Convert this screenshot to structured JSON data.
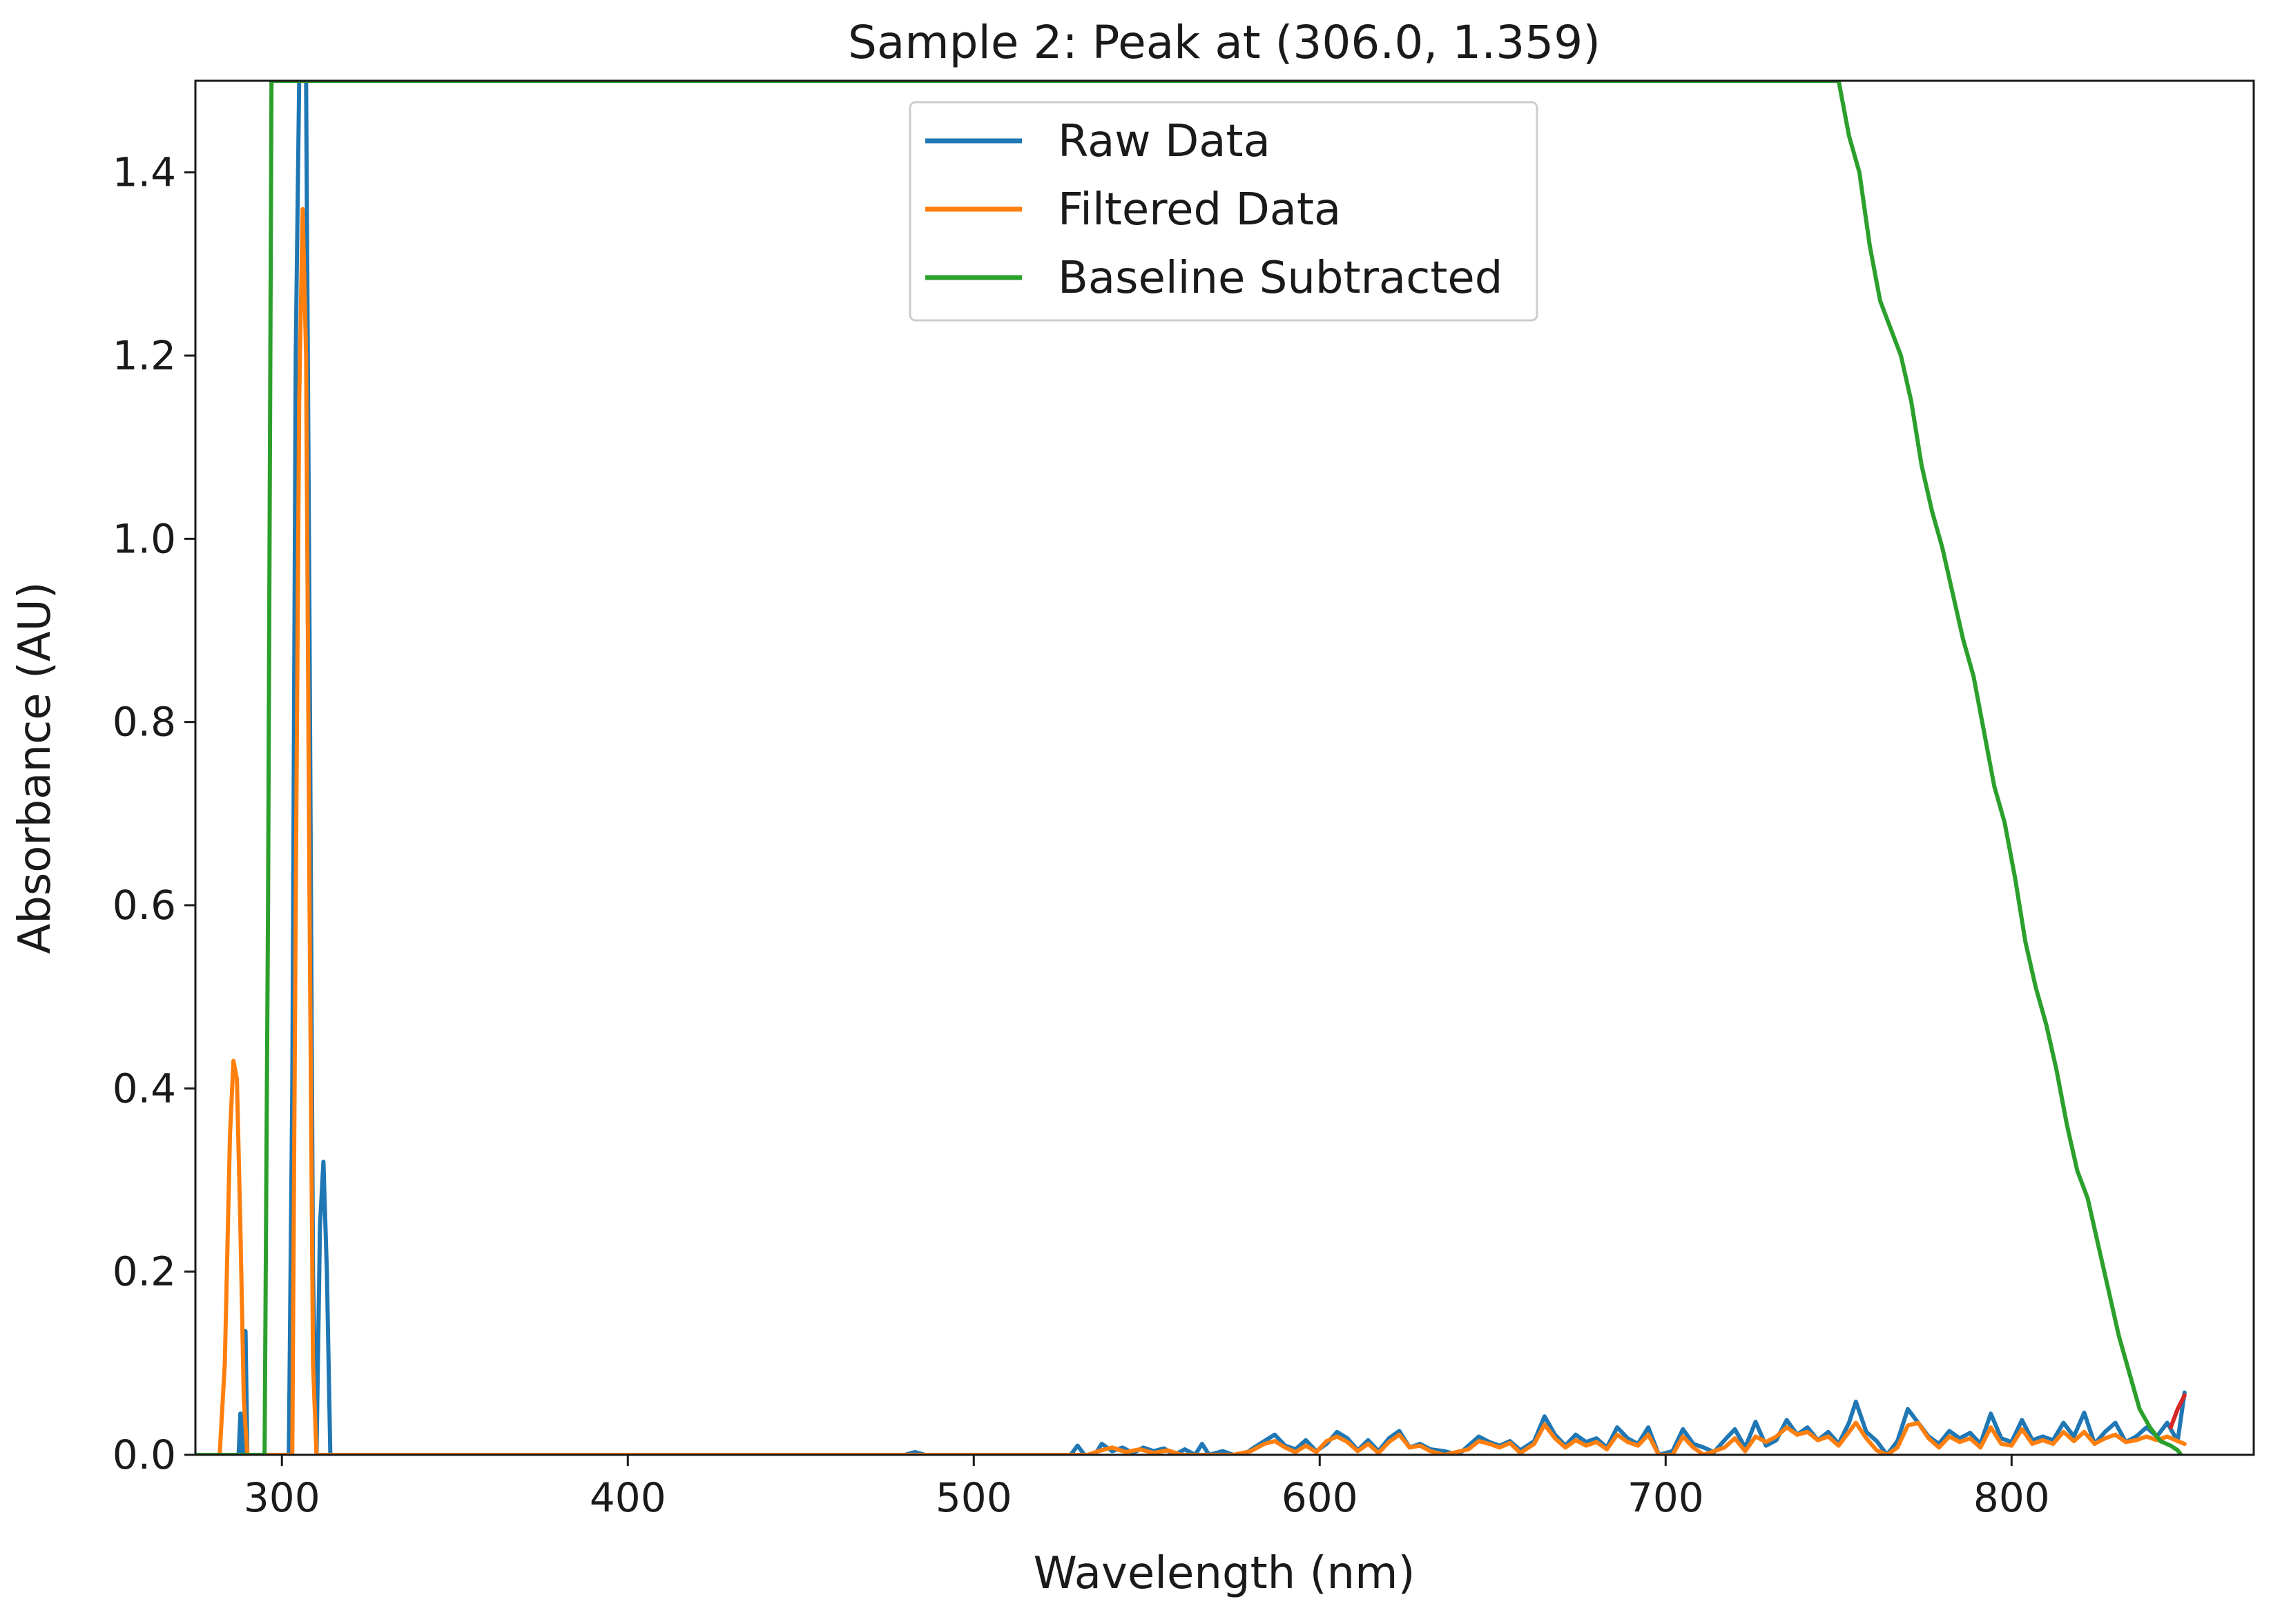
{
  "chart_data": {
    "type": "line",
    "title": "Sample 2: Peak at (306.0, 1.359)",
    "xlabel": "Wavelength (nm)",
    "ylabel": "Absorbance (AU)",
    "xlim": [
      275,
      870
    ],
    "ylim": [
      0,
      1.5
    ],
    "x_ticks": [
      300,
      400,
      500,
      600,
      700,
      800
    ],
    "y_ticks": [
      0.0,
      0.2,
      0.4,
      0.6,
      0.8,
      1.0,
      1.2,
      1.4
    ],
    "x_tick_labels": [
      "300",
      "400",
      "500",
      "600",
      "700",
      "800"
    ],
    "y_tick_labels": [
      "0.0",
      "0.2",
      "0.4",
      "0.6",
      "0.8",
      "1.0",
      "1.2",
      "1.4"
    ],
    "grid": false,
    "legend_position": "top-center",
    "series": [
      {
        "name": "Raw Data",
        "color": "#1f77b4",
        "points": [
          [
            275,
            0
          ],
          [
            287.5,
            0
          ],
          [
            288,
            0.045
          ],
          [
            288.5,
            0
          ],
          [
            289,
            0
          ],
          [
            289.5,
            0.135
          ],
          [
            290,
            0
          ],
          [
            302,
            0
          ],
          [
            303,
            0.4
          ],
          [
            304,
            1.2
          ],
          [
            305,
            1.5
          ],
          [
            306,
            1.5
          ],
          [
            307,
            1.5
          ],
          [
            308,
            0.9
          ],
          [
            309,
            0.2
          ],
          [
            310,
            0
          ],
          [
            311,
            0.25
          ],
          [
            312,
            0.32
          ],
          [
            313,
            0.2
          ],
          [
            314,
            0
          ],
          [
            480,
            0
          ],
          [
            483,
            0.003
          ],
          [
            486,
            0
          ],
          [
            528,
            0
          ],
          [
            530,
            0.01
          ],
          [
            532,
            0
          ],
          [
            535,
            0
          ],
          [
            537,
            0.012
          ],
          [
            540,
            0.004
          ],
          [
            543,
            0.008
          ],
          [
            546,
            0.002
          ],
          [
            549,
            0.008
          ],
          [
            552,
            0.004
          ],
          [
            555,
            0.007
          ],
          [
            558,
            0
          ],
          [
            561,
            0.006
          ],
          [
            564,
            0
          ],
          [
            566,
            0.012
          ],
          [
            568,
            0
          ],
          [
            572,
            0.004
          ],
          [
            575,
            0
          ],
          [
            578,
            0
          ],
          [
            581,
            0.008
          ],
          [
            584,
            0.015
          ],
          [
            587,
            0.022
          ],
          [
            590,
            0.01
          ],
          [
            593,
            0.006
          ],
          [
            596,
            0.016
          ],
          [
            599,
            0.004
          ],
          [
            602,
            0.012
          ],
          [
            605,
            0.025
          ],
          [
            608,
            0.018
          ],
          [
            611,
            0.005
          ],
          [
            614,
            0.016
          ],
          [
            617,
            0.004
          ],
          [
            620,
            0.018
          ],
          [
            623,
            0.026
          ],
          [
            626,
            0.008
          ],
          [
            629,
            0.012
          ],
          [
            632,
            0.006
          ],
          [
            636,
            0.004
          ],
          [
            640,
            0
          ],
          [
            643,
            0.01
          ],
          [
            646,
            0.02
          ],
          [
            649,
            0.014
          ],
          [
            652,
            0.01
          ],
          [
            655,
            0.015
          ],
          [
            658,
            0.005
          ],
          [
            662,
            0.015
          ],
          [
            665,
            0.042
          ],
          [
            668,
            0.022
          ],
          [
            671,
            0.01
          ],
          [
            674,
            0.022
          ],
          [
            677,
            0.014
          ],
          [
            680,
            0.018
          ],
          [
            683,
            0.008
          ],
          [
            686,
            0.03
          ],
          [
            689,
            0.018
          ],
          [
            692,
            0.012
          ],
          [
            695,
            0.03
          ],
          [
            698,
            0
          ],
          [
            702,
            0.004
          ],
          [
            705,
            0.028
          ],
          [
            708,
            0.012
          ],
          [
            711,
            0.008
          ],
          [
            714,
            0.003
          ],
          [
            717,
            0.016
          ],
          [
            720,
            0.028
          ],
          [
            723,
            0.008
          ],
          [
            726,
            0.036
          ],
          [
            729,
            0.01
          ],
          [
            732,
            0.016
          ],
          [
            735,
            0.038
          ],
          [
            738,
            0.022
          ],
          [
            741,
            0.03
          ],
          [
            744,
            0.016
          ],
          [
            747,
            0.025
          ],
          [
            750,
            0.012
          ],
          [
            753,
            0.035
          ],
          [
            755,
            0.058
          ],
          [
            758,
            0.025
          ],
          [
            761,
            0.015
          ],
          [
            764,
            0
          ],
          [
            767,
            0.015
          ],
          [
            770,
            0.05
          ],
          [
            773,
            0.035
          ],
          [
            776,
            0.02
          ],
          [
            779,
            0.012
          ],
          [
            782,
            0.026
          ],
          [
            785,
            0.018
          ],
          [
            788,
            0.024
          ],
          [
            791,
            0.012
          ],
          [
            794,
            0.045
          ],
          [
            797,
            0.018
          ],
          [
            800,
            0.014
          ],
          [
            803,
            0.038
          ],
          [
            806,
            0.016
          ],
          [
            809,
            0.02
          ],
          [
            812,
            0.016
          ],
          [
            815,
            0.035
          ],
          [
            818,
            0.02
          ],
          [
            821,
            0.046
          ],
          [
            824,
            0.012
          ],
          [
            827,
            0.025
          ],
          [
            830,
            0.035
          ],
          [
            833,
            0.014
          ],
          [
            836,
            0.02
          ],
          [
            839,
            0.03
          ],
          [
            842,
            0.02
          ],
          [
            845,
            0.035
          ],
          [
            848,
            0.015
          ],
          [
            850,
            0.068
          ]
        ]
      },
      {
        "name": "Filtered Data",
        "color": "#ff7f0e",
        "points": [
          [
            275,
            0
          ],
          [
            282,
            0
          ],
          [
            283.5,
            0.1
          ],
          [
            285,
            0.35
          ],
          [
            286,
            0.43
          ],
          [
            287,
            0.41
          ],
          [
            288,
            0.25
          ],
          [
            289,
            0.06
          ],
          [
            290,
            0
          ],
          [
            303,
            0
          ],
          [
            304,
            0.6
          ],
          [
            305,
            1.15
          ],
          [
            306,
            1.36
          ],
          [
            307,
            1.2
          ],
          [
            308,
            0.6
          ],
          [
            309,
            0.1
          ],
          [
            310,
            0
          ],
          [
            533,
            0
          ],
          [
            536,
            0.004
          ],
          [
            540,
            0.008
          ],
          [
            544,
            0.003
          ],
          [
            548,
            0.006
          ],
          [
            552,
            0.002
          ],
          [
            556,
            0.005
          ],
          [
            560,
            0
          ],
          [
            575,
            0
          ],
          [
            580,
            0.004
          ],
          [
            584,
            0.012
          ],
          [
            587,
            0.015
          ],
          [
            590,
            0.008
          ],
          [
            593,
            0.003
          ],
          [
            596,
            0.01
          ],
          [
            599,
            0.003
          ],
          [
            602,
            0.015
          ],
          [
            605,
            0.02
          ],
          [
            608,
            0.014
          ],
          [
            611,
            0.004
          ],
          [
            614,
            0.012
          ],
          [
            617,
            0.002
          ],
          [
            620,
            0.014
          ],
          [
            623,
            0.022
          ],
          [
            626,
            0.008
          ],
          [
            629,
            0.01
          ],
          [
            632,
            0.004
          ],
          [
            636,
            0
          ],
          [
            643,
            0.006
          ],
          [
            646,
            0.015
          ],
          [
            649,
            0.012
          ],
          [
            652,
            0.008
          ],
          [
            655,
            0.013
          ],
          [
            658,
            0.002
          ],
          [
            662,
            0.012
          ],
          [
            665,
            0.033
          ],
          [
            668,
            0.018
          ],
          [
            671,
            0.008
          ],
          [
            674,
            0.016
          ],
          [
            677,
            0.01
          ],
          [
            680,
            0.014
          ],
          [
            683,
            0.006
          ],
          [
            686,
            0.022
          ],
          [
            689,
            0.014
          ],
          [
            692,
            0.01
          ],
          [
            695,
            0.022
          ],
          [
            698,
            0
          ],
          [
            702,
            0
          ],
          [
            705,
            0.02
          ],
          [
            708,
            0.008
          ],
          [
            711,
            0
          ],
          [
            717,
            0.008
          ],
          [
            720,
            0.018
          ],
          [
            723,
            0.004
          ],
          [
            726,
            0.02
          ],
          [
            729,
            0.014
          ],
          [
            732,
            0.02
          ],
          [
            735,
            0.03
          ],
          [
            738,
            0.022
          ],
          [
            741,
            0.025
          ],
          [
            744,
            0.016
          ],
          [
            747,
            0.02
          ],
          [
            750,
            0.01
          ],
          [
            753,
            0.025
          ],
          [
            755,
            0.035
          ],
          [
            758,
            0.018
          ],
          [
            761,
            0.005
          ],
          [
            764,
            0
          ],
          [
            767,
            0.008
          ],
          [
            770,
            0.032
          ],
          [
            773,
            0.035
          ],
          [
            776,
            0.018
          ],
          [
            779,
            0.008
          ],
          [
            782,
            0.02
          ],
          [
            785,
            0.014
          ],
          [
            788,
            0.018
          ],
          [
            791,
            0.008
          ],
          [
            794,
            0.03
          ],
          [
            797,
            0.012
          ],
          [
            800,
            0.01
          ],
          [
            803,
            0.028
          ],
          [
            806,
            0.012
          ],
          [
            809,
            0.016
          ],
          [
            812,
            0.012
          ],
          [
            815,
            0.025
          ],
          [
            818,
            0.015
          ],
          [
            821,
            0.025
          ],
          [
            824,
            0.012
          ],
          [
            827,
            0.018
          ],
          [
            830,
            0.022
          ],
          [
            833,
            0.014
          ],
          [
            836,
            0.016
          ],
          [
            839,
            0.02
          ],
          [
            842,
            0.016
          ],
          [
            845,
            0.02
          ],
          [
            848,
            0.015
          ],
          [
            850,
            0.012
          ]
        ]
      },
      {
        "name": "Baseline Subtracted",
        "color": "#2ca02c",
        "points": [
          [
            275,
            0
          ],
          [
            295,
            0
          ],
          [
            296,
            0.6
          ],
          [
            297,
            1.5
          ],
          [
            750,
            1.5
          ],
          [
            753,
            1.44
          ],
          [
            756,
            1.4
          ],
          [
            759,
            1.32
          ],
          [
            762,
            1.26
          ],
          [
            765,
            1.23
          ],
          [
            768,
            1.2
          ],
          [
            771,
            1.15
          ],
          [
            774,
            1.08
          ],
          [
            777,
            1.03
          ],
          [
            780,
            0.99
          ],
          [
            783,
            0.94
          ],
          [
            786,
            0.89
          ],
          [
            789,
            0.85
          ],
          [
            792,
            0.79
          ],
          [
            795,
            0.73
          ],
          [
            798,
            0.69
          ],
          [
            801,
            0.63
          ],
          [
            804,
            0.56
          ],
          [
            807,
            0.51
          ],
          [
            810,
            0.47
          ],
          [
            813,
            0.42
          ],
          [
            816,
            0.36
          ],
          [
            819,
            0.31
          ],
          [
            822,
            0.28
          ],
          [
            825,
            0.23
          ],
          [
            828,
            0.18
          ],
          [
            831,
            0.13
          ],
          [
            834,
            0.09
          ],
          [
            837,
            0.05
          ],
          [
            840,
            0.03
          ],
          [
            843,
            0.015
          ],
          [
            846,
            0.01
          ],
          [
            848,
            0.005
          ],
          [
            849,
            0
          ]
        ]
      },
      {
        "name": "",
        "color": "#d62728",
        "points": [
          [
            846,
            0.03
          ],
          [
            848,
            0.05
          ],
          [
            850,
            0.065
          ]
        ]
      }
    ]
  }
}
